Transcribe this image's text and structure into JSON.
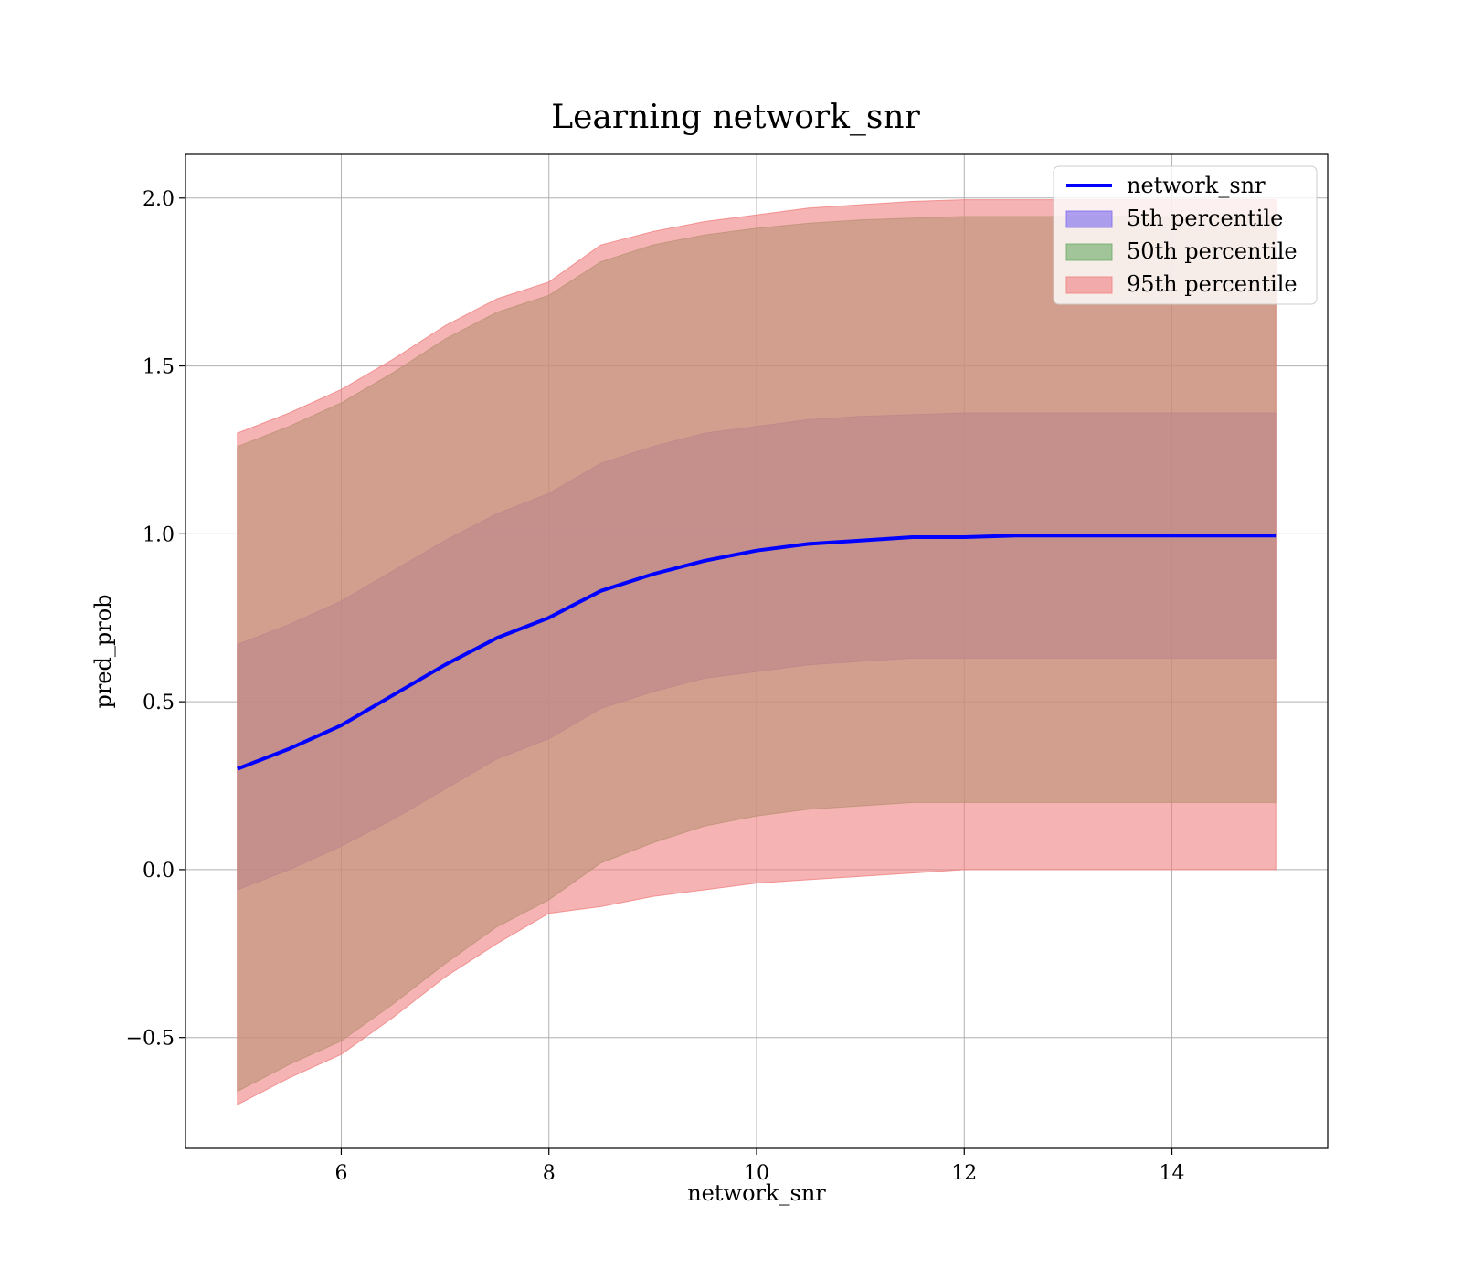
{
  "chart_data": {
    "type": "area",
    "title": "Learning network_snr",
    "xlabel": "network_snr",
    "ylabel": "pred_prob",
    "xlim": [
      4.5,
      15.5
    ],
    "ylim": [
      -0.83,
      2.13
    ],
    "xticks": [
      6,
      8,
      10,
      12,
      14
    ],
    "xtick_labels": [
      "6",
      "8",
      "10",
      "12",
      "14"
    ],
    "yticks": [
      -0.5,
      0.0,
      0.5,
      1.0,
      1.5,
      2.0
    ],
    "ytick_labels": [
      "−0.5",
      "0.0",
      "0.5",
      "1.0",
      "1.5",
      "2.0"
    ],
    "grid": true,
    "legend_placement": "top-right",
    "x": [
      5.0,
      5.5,
      6.0,
      6.5,
      7.0,
      7.5,
      8.0,
      8.5,
      9.0,
      9.5,
      10.0,
      10.5,
      11.0,
      11.5,
      12.0,
      12.5,
      13.0,
      13.5,
      14.0,
      14.5,
      15.0
    ],
    "series": [
      {
        "name": "network_snr",
        "kind": "line",
        "color": "#0000ff",
        "values": [
          0.3,
          0.36,
          0.43,
          0.52,
          0.61,
          0.69,
          0.75,
          0.83,
          0.88,
          0.92,
          0.95,
          0.97,
          0.98,
          0.99,
          0.99,
          0.995,
          0.995,
          0.995,
          0.995,
          0.995,
          0.995
        ]
      },
      {
        "name": "5th percentile",
        "kind": "band",
        "color": "#7b68ee",
        "lower": [
          -0.06,
          0.0,
          0.07,
          0.15,
          0.24,
          0.33,
          0.39,
          0.48,
          0.53,
          0.57,
          0.59,
          0.61,
          0.62,
          0.63,
          0.63,
          0.63,
          0.63,
          0.63,
          0.63,
          0.63,
          0.63
        ],
        "upper": [
          0.67,
          0.73,
          0.8,
          0.89,
          0.98,
          1.06,
          1.12,
          1.21,
          1.26,
          1.3,
          1.32,
          1.34,
          1.35,
          1.355,
          1.36,
          1.36,
          1.36,
          1.36,
          1.36,
          1.36,
          1.36
        ]
      },
      {
        "name": "50th percentile",
        "kind": "band",
        "color": "#6aaa64",
        "lower": [
          -0.66,
          -0.58,
          -0.51,
          -0.4,
          -0.28,
          -0.17,
          -0.09,
          0.02,
          0.08,
          0.13,
          0.16,
          0.18,
          0.19,
          0.2,
          0.2,
          0.2,
          0.2,
          0.2,
          0.2,
          0.2,
          0.2
        ],
        "upper": [
          1.26,
          1.32,
          1.39,
          1.48,
          1.58,
          1.66,
          1.71,
          1.81,
          1.86,
          1.89,
          1.91,
          1.925,
          1.935,
          1.94,
          1.945,
          1.945,
          1.945,
          1.945,
          1.945,
          1.945,
          1.945
        ]
      },
      {
        "name": "95th percentile",
        "kind": "band",
        "color": "#f08080",
        "lower": [
          -0.7,
          -0.62,
          -0.55,
          -0.44,
          -0.32,
          -0.22,
          -0.13,
          -0.11,
          -0.08,
          -0.06,
          -0.04,
          -0.03,
          -0.02,
          -0.01,
          0.0,
          0.0,
          0.0,
          0.0,
          0.0,
          0.0,
          0.0
        ],
        "upper": [
          1.3,
          1.36,
          1.43,
          1.52,
          1.62,
          1.7,
          1.75,
          1.86,
          1.9,
          1.93,
          1.95,
          1.97,
          1.98,
          1.99,
          1.995,
          1.995,
          1.995,
          1.995,
          1.995,
          1.995,
          1.995
        ]
      }
    ]
  }
}
